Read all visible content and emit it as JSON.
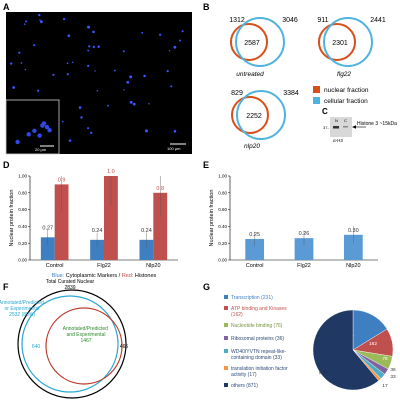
{
  "panels": {
    "A": {
      "letter": "A",
      "inset_scale": "20 µm",
      "main_scale": "100 µm"
    },
    "B": {
      "letter": "B",
      "legend": [
        {
          "label": "nuclear fraction",
          "color": "#d94f1a"
        },
        {
          "label": "cellular fraction",
          "color": "#4fb3e0"
        }
      ],
      "venns": [
        {
          "left": "1312",
          "overlap": "2587",
          "right": "3046",
          "label": "untreated"
        },
        {
          "left": "911",
          "overlap": "2301",
          "right": "2441",
          "label": "flg22"
        },
        {
          "left": "829",
          "overlap": "2252",
          "right": "3384",
          "label": "nlp20"
        }
      ]
    },
    "C": {
      "letter": "C",
      "lane_n": "N",
      "lane_c": "C",
      "marker": "37-",
      "arrow_label": "Histone 3 ~15kDa",
      "antibody": "α-H3"
    },
    "G": {
      "letter": "G",
      "legend": [
        {
          "label": "Transcription (231)",
          "color": "#3d7fc1"
        },
        {
          "label": "ATP binding and Kinases (162)",
          "color": "#c0504d"
        },
        {
          "label": "Nucleotide binding (76)",
          "color": "#9bbb59"
        },
        {
          "label": "Ribosomal proteins (36)",
          "color": "#8064a2"
        },
        {
          "label": "WD40/YVTN repeat-like-containing domain (33)",
          "color": "#4bacc6"
        },
        {
          "label": "translation initiation factor activity (17)",
          "color": "#f79646"
        },
        {
          "label": "others (871)",
          "color": "#1f3864"
        }
      ]
    },
    "F": {
      "letter": "F",
      "total_label": "Total Curated Nuclear",
      "total_value": "2839",
      "cyan_label": "Annotated/Predicted or Experimental",
      "cyan_value": "2532 (89%)",
      "inner_label": "Annotated/Predicted and Experimental",
      "inner_value": "1467",
      "left_count": "640",
      "right_count": "465"
    }
  },
  "chart_data": [
    {
      "type": "bar",
      "panel": "D",
      "categories": [
        "Control",
        "Flg22",
        "Nlp20"
      ],
      "series": [
        {
          "name": "Cytoplasmic Markers",
          "color": "#3d7fc1",
          "values": [
            0.27,
            0.24,
            0.24
          ]
        },
        {
          "name": "Histones",
          "color": "#c0504d",
          "values": [
            0.9,
            1.0,
            0.8
          ]
        }
      ],
      "labels": {
        "series1": [
          "0.27",
          "0.24",
          "0.24"
        ],
        "series2": [
          "0.9",
          "1.0",
          "0.8"
        ]
      },
      "ylabel": "Nuclear protein fraction",
      "yticks": [
        "0.00",
        "0.20",
        "0.40",
        "0.60",
        "0.80",
        "1.00"
      ],
      "ylim": [
        0,
        1.0
      ],
      "caption_blue": "Blue:",
      "caption_mid": "Cytoplasmic Markers /",
      "caption_red": "Red:",
      "caption_end": "Histones"
    },
    {
      "type": "bar",
      "panel": "E",
      "categories": [
        "Control",
        "Flg22",
        "Nlp20"
      ],
      "series": [
        {
          "name": "Cytoplasmic Markers",
          "color": "#5b9bd5",
          "values": [
            0.25,
            0.26,
            0.3
          ]
        }
      ],
      "labels": {
        "series1": [
          "0.25",
          "0.26",
          "0.30"
        ]
      },
      "ylabel": "Nuclear protein fraction",
      "yticks": [
        "0.00",
        "0.20",
        "0.40",
        "0.60",
        "0.80",
        "1.00"
      ],
      "ylim": [
        0,
        1.0
      ]
    },
    {
      "type": "pie",
      "panel": "G",
      "values": [
        231,
        162,
        76,
        36,
        33,
        17,
        871
      ],
      "slice_labels": [
        "231",
        "162",
        "76",
        "36",
        "33",
        "17",
        "871"
      ],
      "colors": [
        "#3d7fc1",
        "#c0504d",
        "#9bbb59",
        "#8064a2",
        "#4bacc6",
        "#f79646",
        "#1f3864"
      ]
    }
  ]
}
